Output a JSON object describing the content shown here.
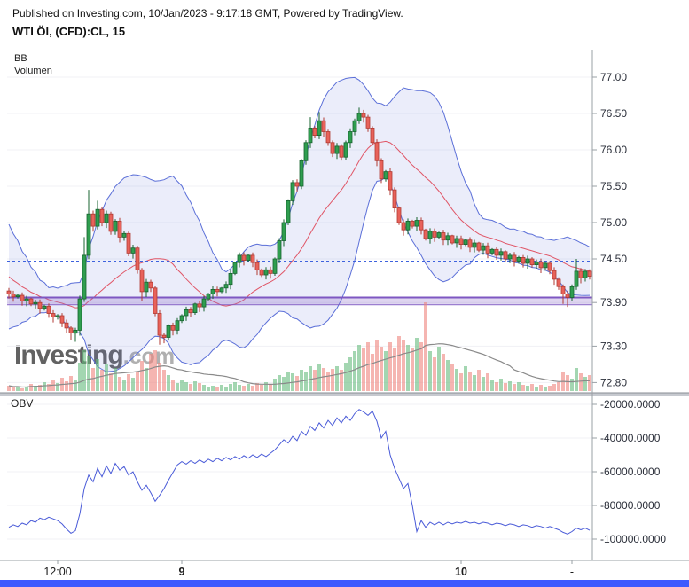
{
  "header": {
    "published": "Published on Investing.com, 10/Jan/2023 - 9:17:18 GMT, Powered by TradingView.",
    "symbol": "WTI Öl, (CFD):CL, 15"
  },
  "watermark": {
    "brand": "Investing",
    "suffix": ".com"
  },
  "panes": {
    "main": {
      "indicator_labels": [
        "BB",
        "Volumen"
      ]
    },
    "obv": {
      "label": "OBV"
    }
  },
  "colors": {
    "up": "#2f9e4f",
    "up_border": "#17632f",
    "down": "#e8625a",
    "down_border": "#b03a33",
    "bb_line": "#5b6fd8",
    "bb_fill": "rgba(118,134,222,0.15)",
    "bb_mid": "#e05566",
    "dashed_level": "#3e62de",
    "band_fill": "rgba(149,117,205,0.30)",
    "band_edge": "#7e57c2",
    "vol_up": "rgba(102,187,125,0.60)",
    "vol_down": "rgba(239,131,125,0.60)",
    "vol_ma": "#8a8a8a",
    "obv_line": "#4a5bd8",
    "axis_text": "#2a2e39",
    "axis_line": "#9aa0a6",
    "bottom_bar": "#3d5afe"
  },
  "chart_data": [
    {
      "type": "candlestick",
      "title": "WTI Öl, (CFD):CL, 15",
      "legend": [
        "BB",
        "Volumen"
      ],
      "interval_minutes": 15,
      "ylim": [
        72.65,
        77.35
      ],
      "open_first": 74.06,
      "closes": [
        74.02,
        73.98,
        74.0,
        73.92,
        73.95,
        73.88,
        73.9,
        73.82,
        73.85,
        73.75,
        73.7,
        73.72,
        73.62,
        73.55,
        73.48,
        73.52,
        73.95,
        74.55,
        75.12,
        74.95,
        75.18,
        75.0,
        75.12,
        74.88,
        75.02,
        74.8,
        74.85,
        74.58,
        74.65,
        74.35,
        74.05,
        74.18,
        74.1,
        73.75,
        73.45,
        73.42,
        73.58,
        73.52,
        73.65,
        73.72,
        73.8,
        73.76,
        73.88,
        73.84,
        73.95,
        74.02,
        74.08,
        74.05,
        74.1,
        74.15,
        74.3,
        74.45,
        74.55,
        74.48,
        74.55,
        74.45,
        74.35,
        74.28,
        74.35,
        74.3,
        74.5,
        74.75,
        75.0,
        75.3,
        75.55,
        75.5,
        75.85,
        76.1,
        76.3,
        76.2,
        76.4,
        76.25,
        76.1,
        75.95,
        76.05,
        75.9,
        76.1,
        76.25,
        76.4,
        76.5,
        76.45,
        76.3,
        76.1,
        75.85,
        75.6,
        75.7,
        75.45,
        75.2,
        75.0,
        74.9,
        75.02,
        74.95,
        75.03,
        74.9,
        74.78,
        74.88,
        74.8,
        74.86,
        74.76,
        74.82,
        74.72,
        74.78,
        74.7,
        74.76,
        74.66,
        74.72,
        74.62,
        74.68,
        74.58,
        74.63,
        74.55,
        74.6,
        74.5,
        74.55,
        74.47,
        74.52,
        74.44,
        74.5,
        74.42,
        74.46,
        74.38,
        74.44,
        74.34,
        74.22,
        74.12,
        74.02,
        73.97,
        74.12,
        74.33,
        74.24,
        74.33,
        74.26
      ],
      "volumes": [
        6,
        4,
        5,
        3,
        5,
        8,
        6,
        7,
        10,
        8,
        12,
        9,
        15,
        11,
        17,
        13,
        32,
        46,
        40,
        26,
        36,
        24,
        30,
        20,
        26,
        16,
        13,
        19,
        15,
        22,
        34,
        26,
        42,
        46,
        32,
        24,
        18,
        12,
        9,
        12,
        10,
        8,
        11,
        9,
        7,
        5,
        6,
        4,
        7,
        5,
        8,
        10,
        7,
        6,
        8,
        6,
        9,
        7,
        10,
        8,
        14,
        18,
        16,
        22,
        20,
        17,
        24,
        21,
        28,
        24,
        30,
        26,
        22,
        25,
        28,
        24,
        32,
        38,
        45,
        52,
        48,
        55,
        42,
        58,
        50,
        45,
        55,
        48,
        62,
        58,
        52,
        48,
        60,
        55,
        100,
        45,
        38,
        50,
        42,
        35,
        30,
        25,
        20,
        28,
        22,
        18,
        24,
        16,
        20,
        12,
        10,
        14,
        9,
        11,
        8,
        10,
        7,
        6,
        8,
        5,
        7,
        5,
        6,
        8,
        10,
        22,
        18,
        14,
        26,
        20,
        16,
        18
      ],
      "high_overrides": {
        "17": 74.8,
        "18": 75.45,
        "20": 75.3,
        "68": 76.45,
        "70": 76.52,
        "79": 76.58,
        "80": 76.55,
        "128": 74.5
      },
      "low_overrides": {
        "14": 73.38,
        "15": 73.36,
        "30": 73.92,
        "34": 73.32,
        "35": 73.34,
        "89": 74.82,
        "125": 73.88,
        "126": 73.84
      },
      "bb": {
        "period": 20,
        "stdev": 2,
        "seed_closes": [
          75.2,
          75.0,
          74.8,
          74.9,
          74.6,
          74.7,
          74.4,
          74.5,
          74.2,
          74.3,
          74.0,
          74.1,
          73.9,
          74.0,
          73.85,
          73.95,
          73.9,
          74.0,
          73.95,
          74.05
        ]
      },
      "levels": {
        "dashed_price": 74.47,
        "band_top": 73.97,
        "band_bottom": 73.87
      },
      "price_ticks": [
        77.0,
        76.5,
        76.0,
        75.5,
        75.0,
        74.5,
        73.9,
        73.3,
        72.8
      ],
      "time_ticks": [
        {
          "bar": 11,
          "label": "12:00",
          "bold": false
        },
        {
          "bar": 39,
          "label": "9",
          "bold": true
        },
        {
          "bar": 102,
          "label": "10",
          "bold": true
        },
        {
          "bar": 127,
          "label": "-",
          "bold": false
        }
      ]
    },
    {
      "type": "line",
      "title": "OBV",
      "ylim": [
        -102000,
        -18000
      ],
      "values": [
        -93000,
        -91500,
        -92500,
        -90500,
        -91500,
        -89000,
        -90000,
        -87500,
        -88500,
        -87000,
        -88000,
        -89000,
        -91000,
        -94000,
        -96500,
        -95000,
        -85000,
        -70000,
        -62000,
        -66000,
        -58000,
        -63000,
        -56500,
        -61000,
        -55000,
        -59000,
        -57000,
        -62000,
        -60000,
        -66000,
        -71000,
        -68000,
        -72500,
        -77500,
        -74000,
        -70000,
        -65000,
        -60500,
        -56000,
        -54000,
        -55500,
        -53500,
        -55000,
        -53000,
        -54500,
        -52500,
        -54000,
        -52000,
        -53500,
        -51500,
        -53000,
        -51000,
        -52500,
        -50500,
        -52000,
        -50000,
        -51500,
        -49500,
        -51000,
        -49000,
        -47000,
        -44000,
        -41000,
        -43000,
        -39000,
        -41500,
        -36000,
        -38500,
        -33000,
        -35500,
        -31000,
        -34000,
        -29500,
        -32500,
        -28000,
        -31000,
        -27000,
        -29500,
        -25500,
        -23000,
        -24500,
        -26500,
        -24000,
        -30000,
        -40000,
        -36000,
        -50000,
        -58000,
        -64000,
        -70000,
        -67000,
        -80000,
        -95500,
        -89000,
        -93000,
        -90000,
        -91500,
        -90000,
        -91500,
        -90000,
        -91000,
        -90000,
        -90500,
        -89500,
        -90500,
        -90000,
        -91000,
        -90000,
        -90500,
        -91500,
        -90500,
        -91000,
        -92000,
        -91000,
        -91500,
        -92500,
        -91500,
        -92000,
        -93000,
        -92000,
        -92500,
        -93500,
        -92500,
        -93500,
        -94500,
        -96000,
        -97000,
        -95500,
        -93500,
        -94500,
        -93500,
        -94800
      ],
      "axis_ticks": [
        {
          "value": -20000,
          "label": "-20000.0000"
        },
        {
          "value": -40000,
          "label": "-40000.0000"
        },
        {
          "value": -60000,
          "label": "-60000.0000"
        },
        {
          "value": -80000,
          "label": "-80000.0000"
        },
        {
          "value": -100000,
          "label": "-100000.0000"
        }
      ]
    }
  ]
}
